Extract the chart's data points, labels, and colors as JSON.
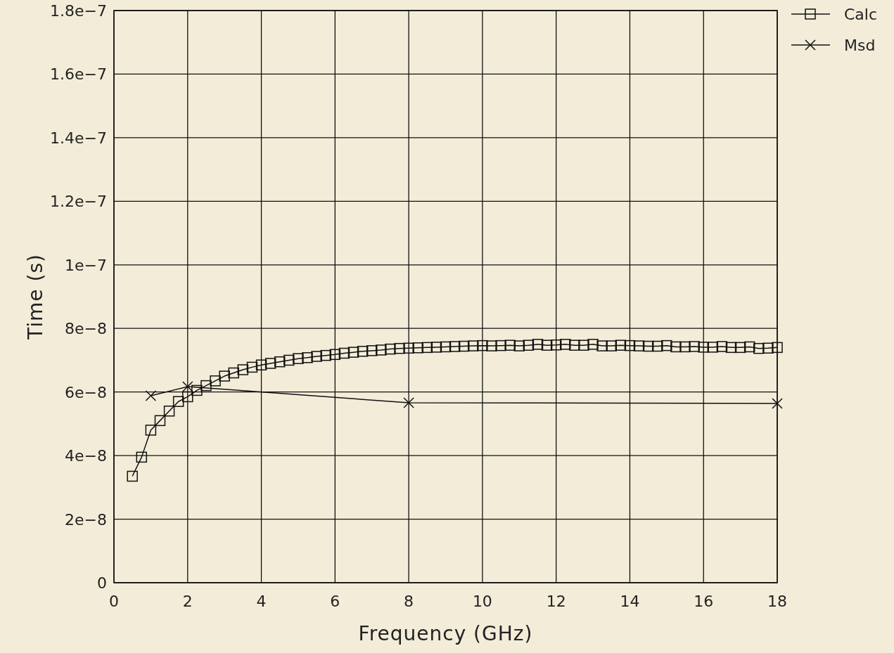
{
  "chart_data": {
    "type": "line",
    "xlabel": "Frequency (GHz)",
    "ylabel": "Time (s)",
    "xlim": [
      0,
      18
    ],
    "xticks": [
      0,
      2,
      4,
      6,
      8,
      10,
      12,
      14,
      16,
      18
    ],
    "ylim": [
      0,
      1.8e-07
    ],
    "yticks": [
      0,
      {
        "value": 2e-08,
        "label": "2e−8"
      },
      {
        "value": 4e-08,
        "label": "4e−8"
      },
      {
        "value": 6e-08,
        "label": "6e−8"
      },
      {
        "value": 8e-08,
        "label": "8e−8"
      },
      {
        "value": 1e-07,
        "label": "1e−7"
      },
      {
        "value": 1.2e-07,
        "label": "1.2e−7"
      },
      {
        "value": 1.4e-07,
        "label": "1.4e−7"
      },
      {
        "value": 1.6e-07,
        "label": "1.6e−7"
      },
      {
        "value": 1.8e-07,
        "label": "1.8e−7"
      }
    ],
    "grid": true,
    "legend": "top right",
    "line_style": "solid",
    "series": [
      {
        "name": "Calc",
        "color": "#111111",
        "marker": "square",
        "x": [
          0.5,
          0.75,
          1,
          1.25,
          1.5,
          1.75,
          2,
          2.25,
          2.5,
          2.75,
          3,
          3.25,
          3.5,
          3.75,
          4,
          4.25,
          4.5,
          4.75,
          5,
          5.25,
          5.5,
          5.75,
          6,
          6.25,
          6.5,
          6.75,
          7,
          7.25,
          7.5,
          7.75,
          8,
          8.25,
          8.5,
          8.75,
          9,
          9.25,
          9.5,
          9.75,
          10,
          10.25,
          10.5,
          10.75,
          11,
          11.25,
          11.5,
          11.75,
          12,
          12.25,
          12.5,
          12.75,
          13,
          13.25,
          13.5,
          13.75,
          14,
          14.25,
          14.5,
          14.75,
          15,
          15.25,
          15.5,
          15.75,
          16,
          16.25,
          16.5,
          16.75,
          17,
          17.25,
          17.5,
          17.75,
          18
        ],
        "values": [
          3.35e-08,
          3.95e-08,
          4.8e-08,
          5.1e-08,
          5.4e-08,
          5.7e-08,
          5.85e-08,
          6.05e-08,
          6.2e-08,
          6.35e-08,
          6.5e-08,
          6.6e-08,
          6.7e-08,
          6.78e-08,
          6.85e-08,
          6.9e-08,
          6.95e-08,
          7e-08,
          7.05e-08,
          7.08e-08,
          7.12e-08,
          7.15e-08,
          7.18e-08,
          7.22e-08,
          7.25e-08,
          7.28e-08,
          7.3e-08,
          7.32e-08,
          7.35e-08,
          7.37e-08,
          7.38e-08,
          7.39e-08,
          7.4e-08,
          7.41e-08,
          7.42e-08,
          7.43e-08,
          7.44e-08,
          7.45e-08,
          7.46e-08,
          7.45e-08,
          7.46e-08,
          7.47e-08,
          7.45e-08,
          7.47e-08,
          7.5e-08,
          7.47e-08,
          7.48e-08,
          7.5e-08,
          7.47e-08,
          7.47e-08,
          7.5e-08,
          7.45e-08,
          7.45e-08,
          7.47e-08,
          7.46e-08,
          7.45e-08,
          7.44e-08,
          7.44e-08,
          7.46e-08,
          7.42e-08,
          7.42e-08,
          7.43e-08,
          7.41e-08,
          7.41e-08,
          7.43e-08,
          7.4e-08,
          7.4e-08,
          7.42e-08,
          7.37e-08,
          7.38e-08,
          7.4e-08
        ]
      },
      {
        "name": "Msd",
        "color": "#111111",
        "marker": "cross",
        "x": [
          1,
          2,
          8,
          18
        ],
        "values": [
          5.88e-08,
          6.17e-08,
          5.66e-08,
          5.64e-08
        ]
      }
    ]
  }
}
